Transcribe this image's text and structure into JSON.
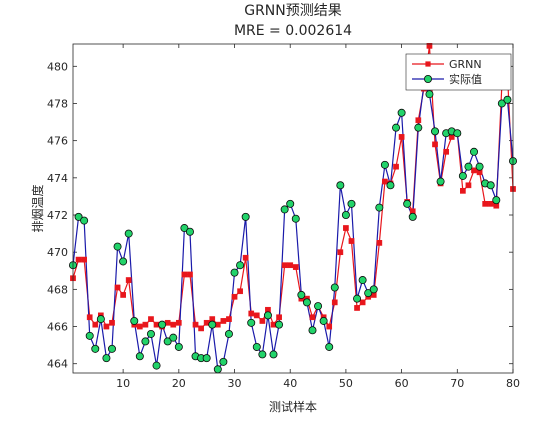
{
  "chart_data": {
    "type": "line",
    "title": "GRNN预测结果",
    "subtitle": "MRE = 0.002614",
    "xlabel": "测试样本",
    "ylabel": "排烟温度",
    "xlim": [
      1,
      80
    ],
    "ylim": [
      463.5,
      481.2
    ],
    "xticks": [
      10,
      20,
      30,
      40,
      50,
      60,
      70,
      80
    ],
    "yticks": [
      464,
      466,
      468,
      470,
      472,
      474,
      476,
      478,
      480
    ],
    "grid": false,
    "legend_position": "top-right",
    "x": [
      1,
      2,
      3,
      4,
      5,
      6,
      7,
      8,
      9,
      10,
      11,
      12,
      13,
      14,
      15,
      16,
      17,
      18,
      19,
      20,
      21,
      22,
      23,
      24,
      25,
      26,
      27,
      28,
      29,
      30,
      31,
      32,
      33,
      34,
      35,
      36,
      37,
      38,
      39,
      40,
      41,
      42,
      43,
      44,
      45,
      46,
      47,
      48,
      49,
      50,
      51,
      52,
      53,
      54,
      55,
      56,
      57,
      58,
      59,
      60,
      61,
      62,
      63,
      64,
      65,
      66,
      67,
      68,
      69,
      70,
      71,
      72,
      73,
      74,
      75,
      76,
      77,
      78,
      79,
      80
    ],
    "series": [
      {
        "name": "GRNN",
        "color": "#e8161c",
        "marker": "square",
        "values": [
          468.6,
          469.6,
          469.6,
          466.5,
          466.1,
          466.6,
          466.0,
          466.2,
          468.1,
          467.7,
          468.5,
          466.1,
          466.0,
          466.1,
          466.4,
          466.1,
          466.0,
          466.2,
          466.1,
          466.2,
          468.8,
          468.8,
          466.1,
          465.9,
          466.2,
          466.4,
          466.1,
          466.3,
          466.4,
          467.6,
          467.9,
          469.7,
          466.7,
          466.6,
          466.3,
          466.9,
          466.1,
          466.5,
          469.3,
          469.3,
          469.2,
          467.5,
          467.5,
          466.5,
          467.1,
          466.5,
          466.0,
          467.3,
          470.0,
          471.3,
          470.6,
          467.0,
          467.3,
          467.6,
          467.7,
          470.5,
          473.8,
          473.7,
          474.6,
          476.2,
          472.7,
          472.2,
          477.1,
          478.8,
          481.1,
          475.8,
          473.7,
          475.4,
          476.2,
          476.4,
          473.3,
          473.6,
          474.4,
          474.3,
          472.6,
          472.6,
          472.5,
          479.0,
          479.6,
          473.4
        ]
      },
      {
        "name": "实际值",
        "color": "#1a1aaa",
        "marker": "circle",
        "values": [
          469.3,
          471.9,
          471.7,
          465.5,
          464.8,
          466.4,
          464.3,
          464.8,
          470.3,
          469.5,
          471.0,
          466.3,
          464.4,
          465.2,
          465.6,
          463.9,
          466.1,
          465.2,
          465.4,
          464.9,
          471.3,
          471.1,
          464.4,
          464.3,
          464.3,
          466.1,
          463.7,
          464.1,
          465.6,
          468.9,
          469.3,
          471.9,
          466.2,
          464.9,
          464.5,
          466.6,
          464.5,
          466.1,
          472.3,
          472.6,
          471.8,
          467.7,
          467.3,
          465.8,
          467.1,
          466.3,
          464.9,
          468.1,
          473.6,
          472.0,
          472.6,
          467.5,
          468.5,
          467.8,
          468.0,
          472.4,
          474.7,
          473.6,
          476.7,
          477.5,
          472.6,
          471.9,
          476.7,
          479.0,
          478.5,
          476.5,
          473.8,
          476.4,
          476.5,
          476.4,
          474.1,
          474.6,
          475.4,
          474.6,
          473.7,
          473.6,
          472.8,
          478.0,
          478.2,
          474.9
        ]
      }
    ]
  }
}
